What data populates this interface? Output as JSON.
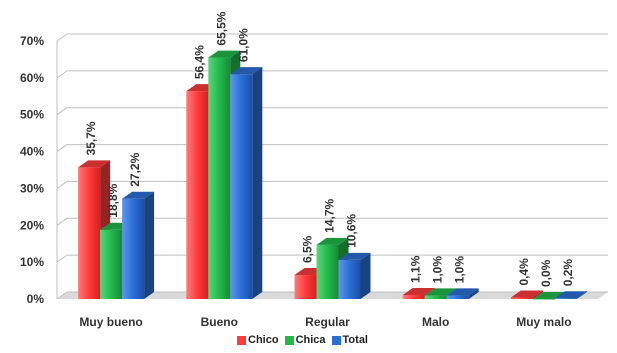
{
  "chart_data": {
    "type": "bar",
    "categories": [
      "Muy bueno",
      "Bueno",
      "Regular",
      "Malo",
      "Muy malo"
    ],
    "series": [
      {
        "name": "Chico",
        "values": [
          35.7,
          56.4,
          6.5,
          1.1,
          0.4
        ],
        "labels": [
          "35,7%",
          "56,4%",
          "6,5%",
          "1,1%",
          "0,4%"
        ],
        "color": "#ff3b3b"
      },
      {
        "name": "Chica",
        "values": [
          18.8,
          65.5,
          14.7,
          1.0,
          0.0
        ],
        "labels": [
          "18,8%",
          "65,5%",
          "14,7%",
          "1,0%",
          "0,0%"
        ],
        "color": "#22b94b"
      },
      {
        "name": "Total",
        "values": [
          27.2,
          61.0,
          10.6,
          1.0,
          0.2
        ],
        "labels": [
          "27,2%",
          "61,0%",
          "10,6%",
          "1,0%",
          "0,2%"
        ],
        "color": "#2a6fd6"
      }
    ],
    "yticks": [
      "0%",
      "10%",
      "20%",
      "30%",
      "40%",
      "50%",
      "60%",
      "70%"
    ],
    "ylim": [
      0,
      70
    ],
    "grid": true,
    "legend_position": "bottom",
    "three_d": true
  }
}
